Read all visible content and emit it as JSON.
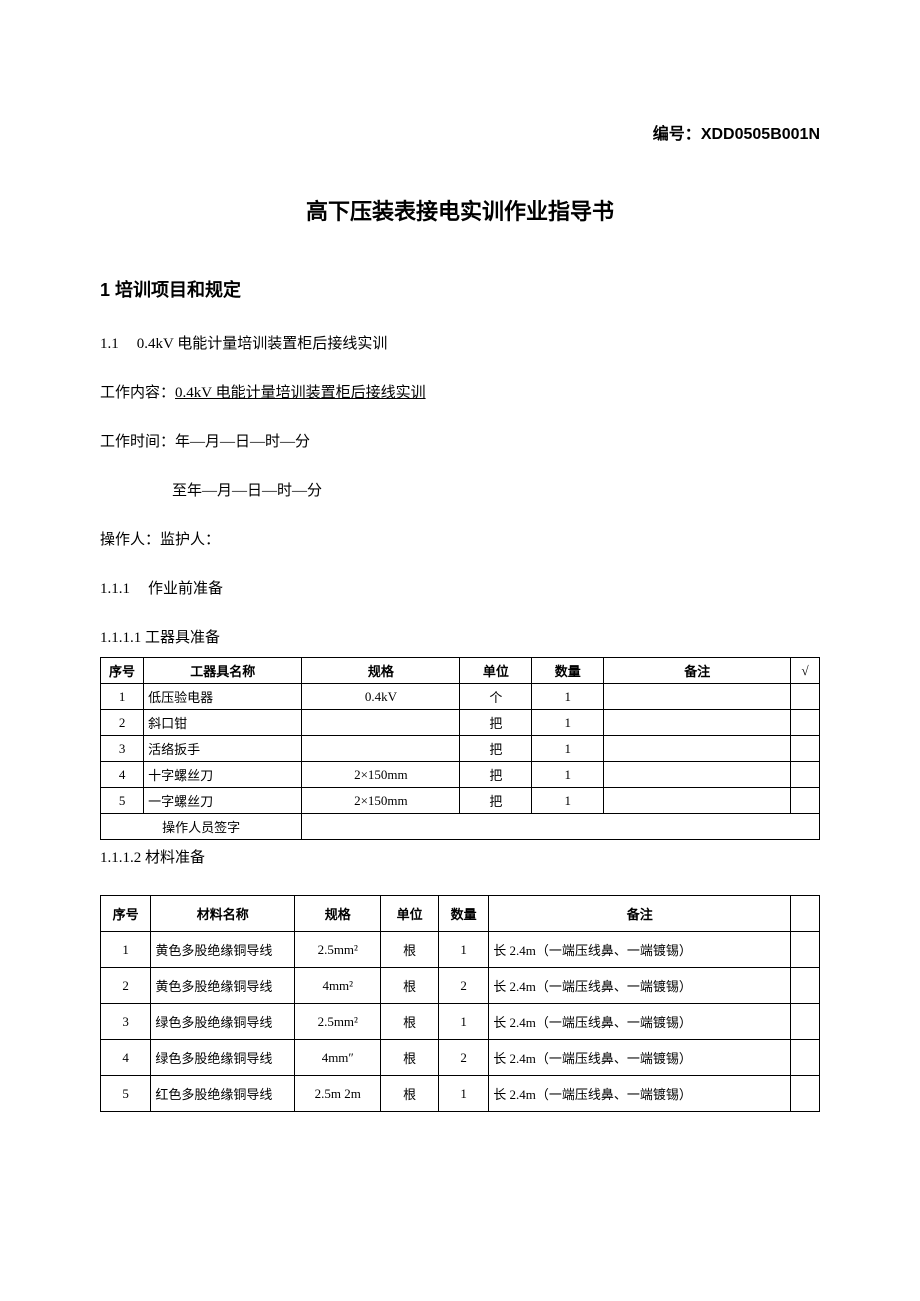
{
  "doc_id_label": "编号：",
  "doc_id": "XDD0505B001N",
  "title": "高下压装表接电实训作业指导书",
  "section1": {
    "num": "1",
    "label": "培训项目和规定"
  },
  "section1_1": {
    "num": "1.1",
    "label": "0.4kV 电能计量培训装置柜后接线实训"
  },
  "work_content_label": "工作内容：",
  "work_content": "0.4kV 电能计量培训装置柜后接线实训",
  "work_time_label": "工作时间：",
  "work_time_from": "年—月—日—时—分",
  "work_time_to": "至年—月—日—时—分",
  "operator_label": "操作人：",
  "guardian_label": "监护人：",
  "section1_1_1": {
    "num": "1.1.1",
    "label": "作业前准备"
  },
  "section1_1_1_1": {
    "num": "1.1.1.1",
    "label": "工器具准备"
  },
  "section1_1_1_2": {
    "num": "1.1.1.2",
    "label": "材料准备"
  },
  "tools_table": {
    "headers": [
      "序号",
      "工器具名称",
      "规格",
      "单位",
      "数量",
      "备注",
      "√"
    ],
    "rows": [
      [
        "1",
        "低压验电器",
        "0.4kV",
        "个",
        "1",
        ""
      ],
      [
        "2",
        "斜口钳",
        "",
        "把",
        "1",
        ""
      ],
      [
        "3",
        "活络扳手",
        "",
        "把",
        "1",
        ""
      ],
      [
        "4",
        "十字螺丝刀",
        "2×150mm",
        "把",
        "1",
        ""
      ],
      [
        "5",
        "一字螺丝刀",
        "2×150mm",
        "把",
        "1",
        ""
      ]
    ],
    "footer_label": "操作人员签字"
  },
  "materials_table": {
    "headers": [
      "序号",
      "材料名称",
      "规格",
      "单位",
      "数量",
      "备注",
      ""
    ],
    "rows": [
      [
        "1",
        "黄色多股绝缘铜导线",
        "2.5mm²",
        "根",
        "1",
        "长 2.4m（一端压线鼻、一端镀锡）"
      ],
      [
        "2",
        "黄色多股绝缘铜导线",
        "4mm²",
        "根",
        "2",
        "长 2.4m（一端压线鼻、一端镀锡）"
      ],
      [
        "3",
        "绿色多股绝缘铜导线",
        "2.5mm²",
        "根",
        "1",
        "长 2.4m（一端压线鼻、一端镀锡）"
      ],
      [
        "4",
        "绿色多股绝缘铜导线",
        "4mm″",
        "根",
        "2",
        "长 2.4m（一端压线鼻、一端镀锡）"
      ],
      [
        "5",
        "红色多股绝缘铜导线",
        "2.5m  2m",
        "根",
        "1",
        "长 2.4m（一端压线鼻、一端镀锡）"
      ]
    ]
  }
}
